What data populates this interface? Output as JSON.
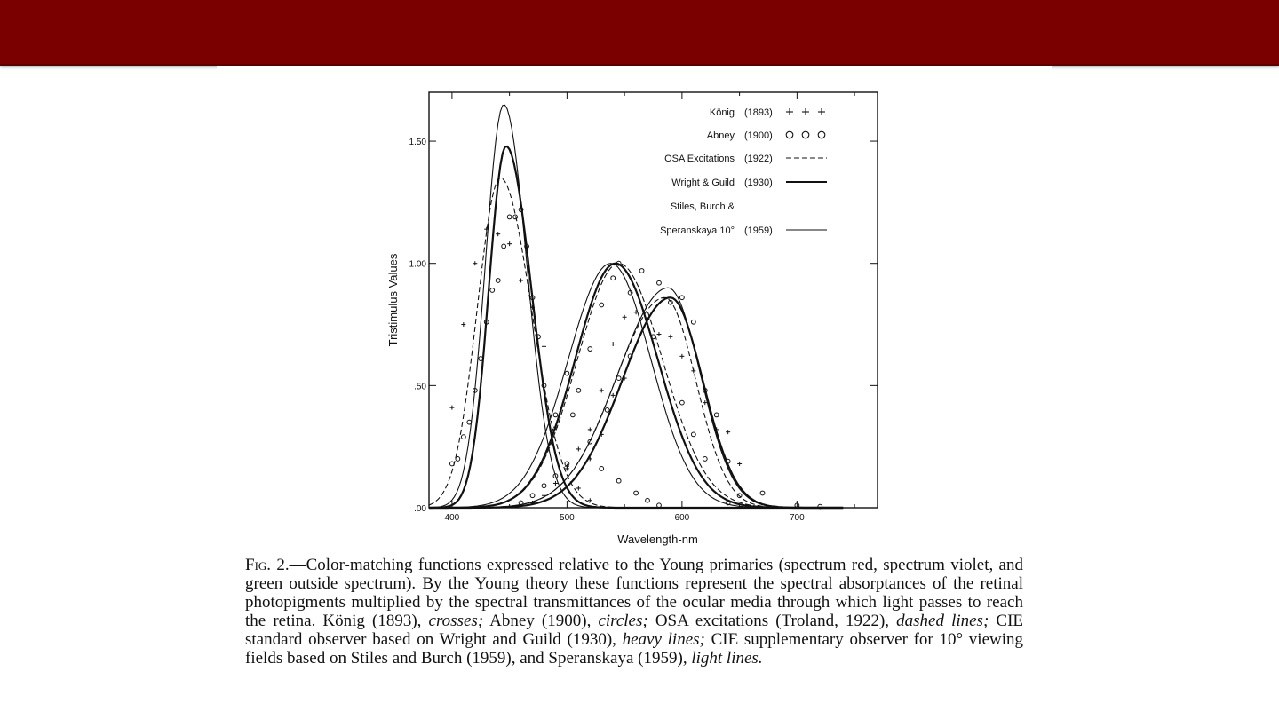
{
  "colors": {
    "top_bar": "#7a0000",
    "ink": "#111111"
  },
  "chart_data": {
    "type": "line",
    "title": "",
    "xlabel": "Wavelength-nm",
    "ylabel": "Tristimulus Values",
    "xlim": [
      380,
      770
    ],
    "ylim": [
      0,
      1.7
    ],
    "x_ticks": [
      400,
      500,
      600,
      700
    ],
    "y_ticks": [
      0.0,
      0.5,
      1.0,
      1.5
    ],
    "x_tick_labels": [
      "400",
      "500",
      "600",
      "700"
    ],
    "y_tick_labels": [
      ".00",
      ".50",
      "1.00",
      "1.50"
    ],
    "grid": false,
    "legend_position": "top-right",
    "legend": [
      {
        "name": "König",
        "year": "(1893)",
        "symbol": "+ + +"
      },
      {
        "name": "Abney",
        "year": "(1900)",
        "symbol": "o o o"
      },
      {
        "name": "OSA Excitations",
        "year": "(1922)",
        "symbol": "dashed"
      },
      {
        "name": "Wright & Guild",
        "year": "(1930)",
        "symbol": "heavy"
      },
      {
        "name": "Stiles, Burch &",
        "year": "",
        "symbol": ""
      },
      {
        "name": "Speranskaya 10°",
        "year": "(1959)",
        "symbol": "light"
      }
    ],
    "series": [
      {
        "name": "König",
        "style": "crosses",
        "points": [
          {
            "x": 400,
            "y": 0.41
          },
          {
            "x": 410,
            "y": 0.75
          },
          {
            "x": 420,
            "y": 1.0
          },
          {
            "x": 430,
            "y": 1.14
          },
          {
            "x": 440,
            "y": 1.12
          },
          {
            "x": 450,
            "y": 1.08
          },
          {
            "x": 460,
            "y": 0.93
          },
          {
            "x": 470,
            "y": 0.82
          },
          {
            "x": 480,
            "y": 0.66
          },
          {
            "x": 490,
            "y": 0.33
          },
          {
            "x": 500,
            "y": 0.16
          },
          {
            "x": 510,
            "y": 0.08
          },
          {
            "x": 520,
            "y": 0.03
          },
          {
            "x": 470,
            "y": 0.02
          },
          {
            "x": 480,
            "y": 0.05
          },
          {
            "x": 490,
            "y": 0.1
          },
          {
            "x": 500,
            "y": 0.17
          },
          {
            "x": 510,
            "y": 0.24
          },
          {
            "x": 520,
            "y": 0.32
          },
          {
            "x": 530,
            "y": 0.48
          },
          {
            "x": 540,
            "y": 0.67
          },
          {
            "x": 550,
            "y": 0.78
          },
          {
            "x": 560,
            "y": 0.8
          },
          {
            "x": 570,
            "y": 0.77
          },
          {
            "x": 580,
            "y": 0.71
          },
          {
            "x": 590,
            "y": 0.7
          },
          {
            "x": 600,
            "y": 0.62
          },
          {
            "x": 610,
            "y": 0.56
          },
          {
            "x": 620,
            "y": 0.43
          },
          {
            "x": 630,
            "y": 0.32
          },
          {
            "x": 640,
            "y": 0.31
          },
          {
            "x": 650,
            "y": 0.18
          },
          {
            "x": 520,
            "y": 0.2
          },
          {
            "x": 530,
            "y": 0.3
          },
          {
            "x": 540,
            "y": 0.46
          },
          {
            "x": 550,
            "y": 0.53
          }
        ]
      },
      {
        "name": "Abney",
        "style": "circles",
        "points": [
          {
            "x": 400,
            "y": 0.18
          },
          {
            "x": 405,
            "y": 0.2
          },
          {
            "x": 410,
            "y": 0.29
          },
          {
            "x": 415,
            "y": 0.35
          },
          {
            "x": 420,
            "y": 0.48
          },
          {
            "x": 425,
            "y": 0.61
          },
          {
            "x": 430,
            "y": 0.76
          },
          {
            "x": 435,
            "y": 0.89
          },
          {
            "x": 440,
            "y": 0.93
          },
          {
            "x": 445,
            "y": 1.07
          },
          {
            "x": 450,
            "y": 1.19
          },
          {
            "x": 455,
            "y": 1.19
          },
          {
            "x": 460,
            "y": 1.22
          },
          {
            "x": 465,
            "y": 1.07
          },
          {
            "x": 470,
            "y": 0.86
          },
          {
            "x": 475,
            "y": 0.7
          },
          {
            "x": 480,
            "y": 0.5
          },
          {
            "x": 490,
            "y": 0.38
          },
          {
            "x": 500,
            "y": 0.18
          },
          {
            "x": 460,
            "y": 0.02
          },
          {
            "x": 470,
            "y": 0.05
          },
          {
            "x": 480,
            "y": 0.09
          },
          {
            "x": 490,
            "y": 0.13
          },
          {
            "x": 500,
            "y": 0.55
          },
          {
            "x": 510,
            "y": 0.48
          },
          {
            "x": 520,
            "y": 0.65
          },
          {
            "x": 530,
            "y": 0.83
          },
          {
            "x": 540,
            "y": 0.94
          },
          {
            "x": 545,
            "y": 1.0
          },
          {
            "x": 555,
            "y": 0.88
          },
          {
            "x": 565,
            "y": 0.97
          },
          {
            "x": 575,
            "y": 0.7
          },
          {
            "x": 580,
            "y": 0.92
          },
          {
            "x": 590,
            "y": 0.84
          },
          {
            "x": 600,
            "y": 0.86
          },
          {
            "x": 610,
            "y": 0.76
          },
          {
            "x": 620,
            "y": 0.48
          },
          {
            "x": 630,
            "y": 0.38
          },
          {
            "x": 640,
            "y": 0.19
          },
          {
            "x": 650,
            "y": 0.05
          },
          {
            "x": 670,
            "y": 0.06
          },
          {
            "x": 700,
            "y": 0.01
          },
          {
            "x": 720,
            "y": 0.005
          },
          {
            "x": 505,
            "y": 0.38
          },
          {
            "x": 520,
            "y": 0.27
          },
          {
            "x": 530,
            "y": 0.16
          },
          {
            "x": 545,
            "y": 0.11
          },
          {
            "x": 560,
            "y": 0.06
          },
          {
            "x": 570,
            "y": 0.03
          },
          {
            "x": 580,
            "y": 0.01
          },
          {
            "x": 535,
            "y": 0.4
          },
          {
            "x": 545,
            "y": 0.53
          },
          {
            "x": 555,
            "y": 0.62
          },
          {
            "x": 600,
            "y": 0.43
          },
          {
            "x": 610,
            "y": 0.3
          },
          {
            "x": 640,
            "y": 0.02
          },
          {
            "x": 620,
            "y": 0.2
          }
        ]
      },
      {
        "name": "OSA Excitations",
        "style": "dashed",
        "curves": [
          {
            "peak_x": 442,
            "peak_y": 1.35,
            "sigma_left": 20,
            "sigma_right": 27
          },
          {
            "peak_x": 545,
            "peak_y": 1.0,
            "sigma_left": 36,
            "sigma_right": 38
          },
          {
            "peak_x": 585,
            "peak_y": 0.86,
            "sigma_left": 43,
            "sigma_right": 27
          }
        ]
      },
      {
        "name": "Wright & Guild",
        "style": "heavy",
        "curves": [
          {
            "peak_x": 447,
            "peak_y": 1.48,
            "sigma_left": 15,
            "sigma_right": 22
          },
          {
            "peak_x": 542,
            "peak_y": 1.0,
            "sigma_left": 35,
            "sigma_right": 37
          },
          {
            "peak_x": 590,
            "peak_y": 0.86,
            "sigma_left": 42,
            "sigma_right": 28
          }
        ]
      },
      {
        "name": "Stiles, Burch & Speranskaya 10°",
        "style": "light",
        "curves": [
          {
            "peak_x": 445,
            "peak_y": 1.65,
            "sigma_left": 16,
            "sigma_right": 20
          },
          {
            "peak_x": 538,
            "peak_y": 1.0,
            "sigma_left": 37,
            "sigma_right": 35
          },
          {
            "peak_x": 588,
            "peak_y": 0.9,
            "sigma_left": 44,
            "sigma_right": 28
          }
        ]
      }
    ]
  },
  "caption": {
    "fig_label": "Fig. 2.",
    "part1": "—Color-matching functions expressed relative to the Young primaries (spectrum red, spectrum violet, and green outside spectrum). By the Young theory these functions represent the spectral absorptances of the retinal photopigments multiplied by the spectral transmittances of the ocular media through which light passes to reach the retina. König (1893), ",
    "crosses": "crosses;",
    "part2": " Abney (1900), ",
    "circles": "circles;",
    "part3": " OSA excitations (Troland, 1922), ",
    "dashed": "dashed lines;",
    "part4": " CIE standard observer based on Wright and Guild (1930), ",
    "heavy": "heavy lines;",
    "part5": " CIE supplementary observer for 10° viewing fields based on Stiles and Burch (1959), and Speranskaya (1959), ",
    "light": "light lines."
  }
}
